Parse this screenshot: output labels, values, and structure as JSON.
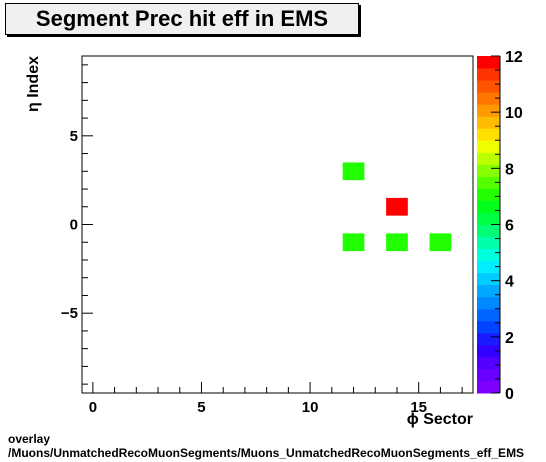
{
  "title": "Segment Prec hit eff in EMS",
  "footer": {
    "line1": "overlay",
    "line2": "/Muons/UnmatchedRecoMuonSegments/Muons_UnmatchedRecoMuonSegments_eff_EMS"
  },
  "chart_data": {
    "type": "heatmap",
    "title": "Segment Prec hit eff in EMS",
    "xlabel": "ϕ Sector",
    "ylabel": "η Index",
    "xlim": [
      -0.5,
      17.5
    ],
    "ylim": [
      -9.5,
      9.5
    ],
    "xticks": [
      0,
      5,
      10,
      15
    ],
    "yticks": [
      -5,
      0,
      5
    ],
    "colorbar": {
      "min": 0,
      "max": 12,
      "ticks": [
        0,
        2,
        4,
        6,
        8,
        10,
        12
      ]
    },
    "cells": [
      {
        "x": 12,
        "y": 3,
        "value": 7
      },
      {
        "x": 14,
        "y": 1,
        "value": 12
      },
      {
        "x": 12,
        "y": -1,
        "value": 7
      },
      {
        "x": 14,
        "y": -1,
        "value": 7
      },
      {
        "x": 16,
        "y": -1,
        "value": 7
      }
    ]
  }
}
